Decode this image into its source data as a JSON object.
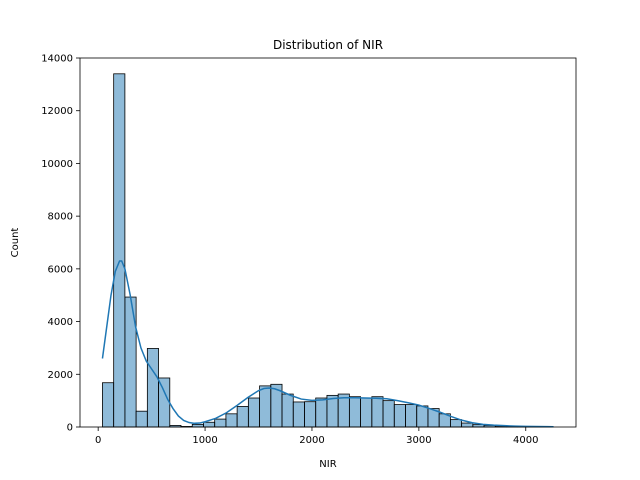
{
  "chart_data": {
    "type": "bar",
    "title": "Distribution of NIR",
    "xlabel": "NIR",
    "ylabel": "Count",
    "xlim": [
      -170,
      4470
    ],
    "ylim": [
      0,
      14000
    ],
    "xticks": [
      0,
      1000,
      2000,
      3000,
      4000
    ],
    "yticks": [
      0,
      2000,
      4000,
      6000,
      8000,
      10000,
      12000,
      14000
    ],
    "bar_color": "#1f77b4",
    "bar_alpha": 0.5,
    "edge_color": "#000000",
    "kde_color": "#1f77b4",
    "grid": false,
    "bins": [
      {
        "x0": 40,
        "x1": 145,
        "count": 1680
      },
      {
        "x0": 145,
        "x1": 250,
        "count": 13400
      },
      {
        "x0": 250,
        "x1": 355,
        "count": 4930
      },
      {
        "x0": 355,
        "x1": 460,
        "count": 600
      },
      {
        "x0": 460,
        "x1": 565,
        "count": 2980
      },
      {
        "x0": 565,
        "x1": 670,
        "count": 1860
      },
      {
        "x0": 670,
        "x1": 775,
        "count": 60
      },
      {
        "x0": 775,
        "x1": 880,
        "count": 20
      },
      {
        "x0": 880,
        "x1": 985,
        "count": 100
      },
      {
        "x0": 985,
        "x1": 1090,
        "count": 180
      },
      {
        "x0": 1090,
        "x1": 1195,
        "count": 300
      },
      {
        "x0": 1195,
        "x1": 1300,
        "count": 500
      },
      {
        "x0": 1300,
        "x1": 1405,
        "count": 780
      },
      {
        "x0": 1405,
        "x1": 1510,
        "count": 1100
      },
      {
        "x0": 1510,
        "x1": 1615,
        "count": 1560
      },
      {
        "x0": 1615,
        "x1": 1720,
        "count": 1620
      },
      {
        "x0": 1720,
        "x1": 1825,
        "count": 1250
      },
      {
        "x0": 1825,
        "x1": 1930,
        "count": 950
      },
      {
        "x0": 1930,
        "x1": 2035,
        "count": 960
      },
      {
        "x0": 2035,
        "x1": 2140,
        "count": 1100
      },
      {
        "x0": 2140,
        "x1": 2245,
        "count": 1200
      },
      {
        "x0": 2245,
        "x1": 2350,
        "count": 1250
      },
      {
        "x0": 2350,
        "x1": 2455,
        "count": 1150
      },
      {
        "x0": 2455,
        "x1": 2560,
        "count": 1100
      },
      {
        "x0": 2560,
        "x1": 2665,
        "count": 1150
      },
      {
        "x0": 2665,
        "x1": 2770,
        "count": 1000
      },
      {
        "x0": 2770,
        "x1": 2875,
        "count": 850
      },
      {
        "x0": 2875,
        "x1": 2980,
        "count": 850
      },
      {
        "x0": 2980,
        "x1": 3085,
        "count": 800
      },
      {
        "x0": 3085,
        "x1": 3190,
        "count": 700
      },
      {
        "x0": 3190,
        "x1": 3295,
        "count": 500
      },
      {
        "x0": 3295,
        "x1": 3400,
        "count": 280
      },
      {
        "x0": 3400,
        "x1": 3505,
        "count": 150
      },
      {
        "x0": 3505,
        "x1": 3610,
        "count": 90
      },
      {
        "x0": 3610,
        "x1": 3715,
        "count": 60
      },
      {
        "x0": 3715,
        "x1": 3820,
        "count": 40
      },
      {
        "x0": 3820,
        "x1": 3925,
        "count": 30
      },
      {
        "x0": 3925,
        "x1": 4030,
        "count": 20
      },
      {
        "x0": 4030,
        "x1": 4135,
        "count": 15
      },
      {
        "x0": 4135,
        "x1": 4240,
        "count": 10
      }
    ],
    "kde": {
      "x": [
        40,
        80,
        120,
        160,
        200,
        220,
        250,
        300,
        350,
        400,
        450,
        500,
        550,
        600,
        650,
        700,
        750,
        800,
        850,
        900,
        950,
        1000,
        1100,
        1200,
        1300,
        1400,
        1500,
        1550,
        1600,
        1650,
        1700,
        1800,
        1900,
        2000,
        2100,
        2200,
        2300,
        2400,
        2500,
        2600,
        2700,
        2800,
        2900,
        3000,
        3100,
        3200,
        3300,
        3400,
        3500,
        3600,
        3700,
        3800,
        3900,
        4000,
        4100,
        4200,
        4260
      ],
      "y": [
        2600,
        3800,
        5000,
        5900,
        6300,
        6300,
        6000,
        5000,
        3800,
        3000,
        2500,
        2200,
        1900,
        1500,
        1050,
        700,
        420,
        250,
        170,
        140,
        150,
        200,
        330,
        540,
        820,
        1120,
        1380,
        1460,
        1480,
        1450,
        1380,
        1200,
        1060,
        1010,
        1030,
        1080,
        1110,
        1110,
        1100,
        1090,
        1070,
        1000,
        920,
        830,
        700,
        560,
        400,
        260,
        160,
        100,
        70,
        50,
        35,
        25,
        20,
        15,
        10
      ]
    }
  }
}
